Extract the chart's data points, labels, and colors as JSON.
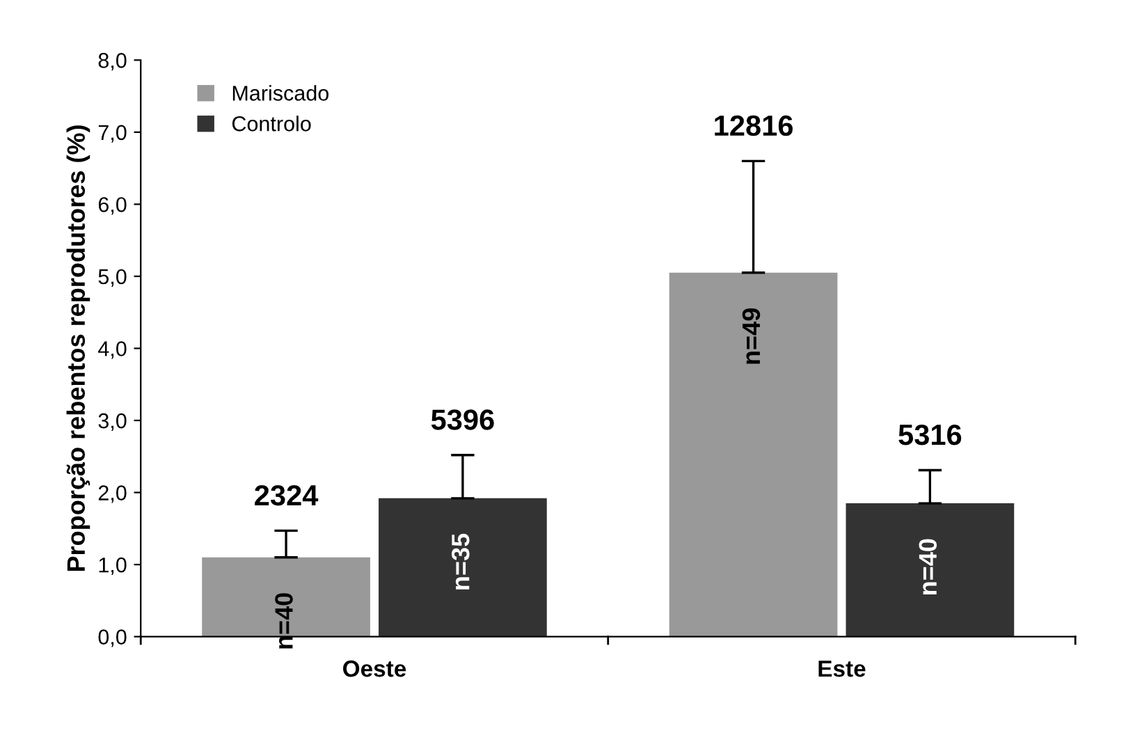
{
  "chart_data": {
    "type": "bar",
    "ylabel": "Proporção rebentos reprodutores (%)",
    "categories": [
      "Oeste",
      "Este"
    ],
    "series": [
      {
        "name": "Mariscado",
        "color": "#999999",
        "values": [
          1.1,
          5.05
        ],
        "errors": [
          0.37,
          1.55
        ]
      },
      {
        "name": "Controlo",
        "color": "#333333",
        "values": [
          1.92,
          1.85
        ],
        "errors": [
          0.6,
          0.46
        ]
      }
    ],
    "ylim": [
      0,
      8
    ],
    "yticks": [
      {
        "value": 0,
        "label": "0,0"
      },
      {
        "value": 1,
        "label": "1,0"
      },
      {
        "value": 2,
        "label": "2,0"
      },
      {
        "value": 3,
        "label": "3,0"
      },
      {
        "value": 4,
        "label": "4,0"
      },
      {
        "value": 5,
        "label": "5,0"
      },
      {
        "value": 6,
        "label": "6,0"
      },
      {
        "value": 7,
        "label": "7,0"
      },
      {
        "value": 8,
        "label": "8,0"
      }
    ],
    "annotations": [
      "2324",
      "5396",
      "12816",
      "5316",
      "n=40",
      "n=35",
      "n=49",
      "n=40"
    ],
    "legend": "top left",
    "grid": false
  }
}
